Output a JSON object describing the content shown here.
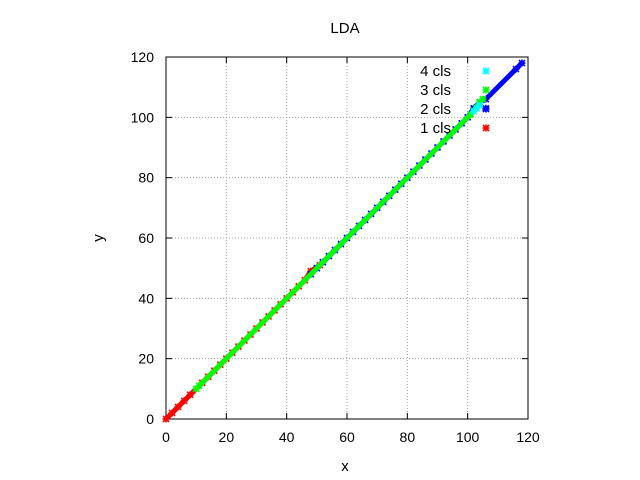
{
  "chart_data": {
    "type": "scatter",
    "title": "LDA",
    "xlabel": "x",
    "ylabel": "y",
    "xlim": [
      0,
      120
    ],
    "ylim": [
      0,
      120
    ],
    "xticks": [
      0,
      20,
      40,
      60,
      80,
      100,
      120
    ],
    "yticks": [
      0,
      20,
      40,
      60,
      80,
      100,
      120
    ],
    "x_tick_labels": [
      "0",
      "20",
      "40",
      "60",
      "80",
      "100",
      "120"
    ],
    "y_tick_labels": [
      "0",
      "20",
      "40",
      "60",
      "80",
      "100",
      "120"
    ],
    "grid": true,
    "legend_position": "top-right",
    "series": [
      {
        "name": "4 cls",
        "color": "#00ffff",
        "points": [
          [
            102,
            102
          ],
          [
            103,
            103
          ],
          [
            104,
            104
          ]
        ]
      },
      {
        "name": "3 cls",
        "color": "#00ff00",
        "points": [
          [
            10,
            10
          ],
          [
            11,
            11
          ],
          [
            101,
            101
          ],
          [
            104,
            105
          ],
          [
            105,
            106
          ]
        ]
      },
      {
        "name": "2 cls",
        "color": "#0000ff",
        "points": [
          [
            48,
            48
          ],
          [
            50,
            50
          ],
          [
            52,
            52
          ],
          [
            54,
            54
          ],
          [
            56,
            56
          ],
          [
            58,
            58
          ],
          [
            60,
            60
          ],
          [
            62,
            62
          ],
          [
            64,
            64
          ],
          [
            66,
            66
          ],
          [
            68,
            68
          ],
          [
            70,
            70
          ],
          [
            72,
            72
          ],
          [
            74,
            74
          ],
          [
            76,
            76
          ],
          [
            78,
            78
          ],
          [
            80,
            80
          ],
          [
            82,
            82
          ],
          [
            84,
            84
          ],
          [
            86,
            86
          ],
          [
            88,
            88
          ],
          [
            90,
            90
          ],
          [
            92,
            92
          ],
          [
            94,
            94
          ],
          [
            96,
            96
          ],
          [
            98,
            98
          ],
          [
            100,
            100
          ],
          [
            102,
            103
          ],
          [
            104,
            105
          ],
          [
            106,
            106
          ],
          [
            106,
            103
          ],
          [
            116,
            116
          ],
          [
            118,
            118
          ]
        ]
      },
      {
        "name": "1 cls",
        "color": "#ff0000",
        "points": [
          [
            0,
            0
          ],
          [
            2,
            2
          ],
          [
            4,
            4
          ],
          [
            6,
            6
          ],
          [
            8,
            8
          ],
          [
            12,
            12
          ],
          [
            14,
            14
          ],
          [
            16,
            16
          ],
          [
            18,
            18
          ],
          [
            20,
            20
          ],
          [
            22,
            22
          ],
          [
            24,
            24
          ],
          [
            26,
            26
          ],
          [
            28,
            28
          ],
          [
            30,
            30
          ],
          [
            32,
            32
          ],
          [
            34,
            34
          ],
          [
            36,
            36
          ],
          [
            38,
            38
          ],
          [
            40,
            40
          ],
          [
            42,
            42
          ],
          [
            44,
            44
          ],
          [
            46,
            46
          ],
          [
            48,
            49
          ],
          [
            51,
            51
          ]
        ]
      }
    ]
  }
}
